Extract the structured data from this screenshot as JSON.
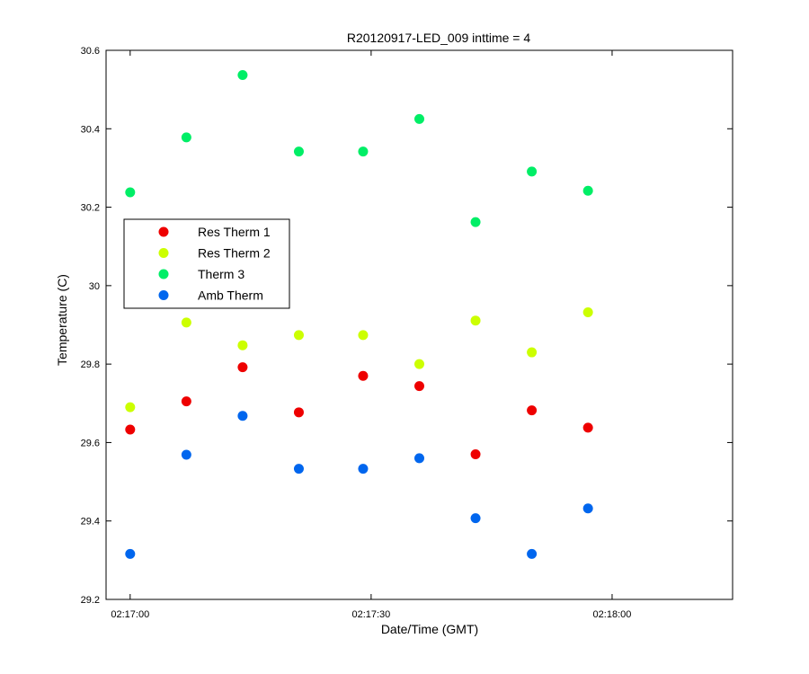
{
  "chart_data": {
    "type": "scatter",
    "title": "R20120917-LED_009 inttime = 4",
    "xlabel": "Date/Time (GMT)",
    "ylabel": "Temperature (C)",
    "xlim": [
      "02:16:57",
      "02:18:15"
    ],
    "ylim": [
      29.2,
      30.6
    ],
    "x_ticks": [
      "02:17:00",
      "02:17:30",
      "02:18:00"
    ],
    "y_ticks": [
      "29.2",
      "29.4",
      "29.6",
      "29.8",
      "30",
      "30.2",
      "30.4",
      "30.6"
    ],
    "grid": false,
    "legend_position": "center-left",
    "x": [
      "02:17:00",
      "02:17:07",
      "02:17:14",
      "02:17:21",
      "02:17:29",
      "02:17:36",
      "02:17:43",
      "02:17:50",
      "02:17:57"
    ],
    "series": [
      {
        "name": "Res Therm 1",
        "color": "#ee0000",
        "values": [
          29.633,
          29.705,
          29.792,
          29.677,
          29.77,
          29.744,
          29.57,
          29.682,
          29.638
        ]
      },
      {
        "name": "Res Therm 2",
        "color": "#ccff00",
        "values": [
          29.69,
          29.906,
          29.848,
          29.874,
          29.874,
          29.8,
          29.911,
          29.83,
          29.932
        ]
      },
      {
        "name": "Therm 3",
        "color": "#00ee66",
        "values": [
          30.238,
          30.378,
          30.537,
          30.342,
          30.342,
          30.425,
          30.162,
          30.291,
          30.242
        ]
      },
      {
        "name": "Amb Therm",
        "color": "#0066ee",
        "values": [
          29.316,
          29.569,
          29.668,
          29.533,
          29.533,
          29.56,
          29.407,
          29.316,
          29.432
        ]
      }
    ]
  }
}
